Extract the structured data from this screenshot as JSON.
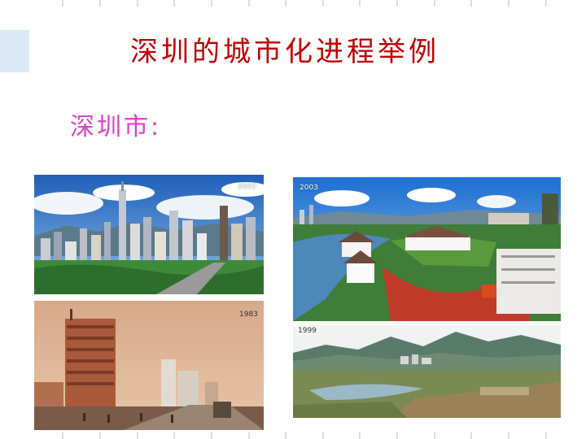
{
  "slide": {
    "title": "深圳的城市化进程举例",
    "subtitle": "深圳市:"
  },
  "photos": {
    "top_left": {
      "year": "2003",
      "alt": "city-skyline-photo"
    },
    "bottom_left": {
      "year": "1983",
      "alt": "construction-street-photo"
    },
    "top_right": {
      "year": "2003",
      "alt": "waterfront-villa-photo"
    },
    "bottom_right": {
      "year": "1999",
      "alt": "valley-panorama-photo"
    }
  },
  "colors": {
    "title": "#c00000",
    "subtitle": "#e040c8",
    "accent_block": "#dbe9f6"
  }
}
